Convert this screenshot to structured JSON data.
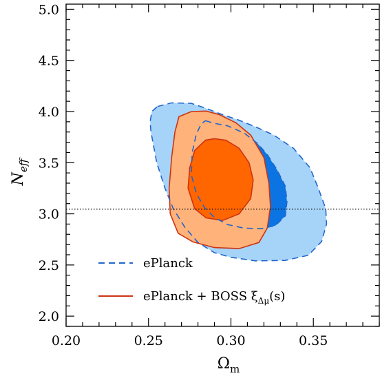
{
  "chart_data": {
    "type": "contour",
    "xlabel": "Ω",
    "xlabel_sub": "m",
    "ylabel": "N",
    "ylabel_sub": "eff",
    "xlim": [
      0.2,
      0.39
    ],
    "ylim": [
      1.9,
      5.05
    ],
    "x_ticks": [
      0.2,
      0.25,
      0.3,
      0.35
    ],
    "x_tick_labels": [
      "0.20",
      "0.25",
      "0.30",
      "0.35"
    ],
    "y_ticks": [
      2.0,
      2.5,
      3.0,
      3.5,
      4.0,
      4.5,
      5.0
    ],
    "y_tick_labels": [
      "2.0",
      "2.5",
      "3.0",
      "3.5",
      "4.0",
      "4.5",
      "5.0"
    ],
    "reference_line": {
      "y": 3.046,
      "style": "dotted"
    },
    "legend": {
      "placement": "bottom-left",
      "entries": [
        {
          "label": "ePlanck",
          "style": "dashed",
          "color": "#2266cc"
        },
        {
          "label": "ePlanck + BOSS ξ",
          "label_sub": "Δμ",
          "label_suffix": "(s)",
          "style": "solid",
          "color": "#cc3311"
        }
      ]
    },
    "series": [
      {
        "name": "ePlanck",
        "fill_68": "#0b74e2",
        "fill_95": "#a6d4f8",
        "line": "#2266cc",
        "contour_95": [
          [
            0.2555,
            4.05
          ],
          [
            0.264,
            4.085
          ],
          [
            0.276,
            4.08
          ],
          [
            0.285,
            4.03
          ],
          [
            0.294,
            3.975
          ],
          [
            0.305,
            3.915
          ],
          [
            0.315,
            3.85
          ],
          [
            0.326,
            3.77
          ],
          [
            0.338,
            3.64
          ],
          [
            0.348,
            3.45
          ],
          [
            0.353,
            3.25
          ],
          [
            0.3575,
            3.05
          ],
          [
            0.358,
            2.9
          ],
          [
            0.355,
            2.73
          ],
          [
            0.347,
            2.595
          ],
          [
            0.333,
            2.545
          ],
          [
            0.315,
            2.54
          ],
          [
            0.3,
            2.575
          ],
          [
            0.29,
            2.62
          ],
          [
            0.28,
            2.72
          ],
          [
            0.272,
            2.87
          ],
          [
            0.265,
            3.05
          ],
          [
            0.26,
            3.25
          ],
          [
            0.255,
            3.5
          ],
          [
            0.2515,
            3.8
          ],
          [
            0.251,
            3.9
          ],
          [
            0.252,
            4.0
          ]
        ],
        "contour_68": [
          [
            0.2845,
            3.91
          ],
          [
            0.29,
            3.885
          ],
          [
            0.298,
            3.86
          ],
          [
            0.308,
            3.79
          ],
          [
            0.316,
            3.69
          ],
          [
            0.322,
            3.58
          ],
          [
            0.328,
            3.43
          ],
          [
            0.333,
            3.27
          ],
          [
            0.334,
            3.12
          ],
          [
            0.333,
            2.98
          ],
          [
            0.327,
            2.885
          ],
          [
            0.3185,
            2.855
          ],
          [
            0.308,
            2.86
          ],
          [
            0.298,
            2.895
          ],
          [
            0.29,
            2.965
          ],
          [
            0.284,
            3.06
          ],
          [
            0.279,
            3.2
          ],
          [
            0.276,
            3.38
          ],
          [
            0.2765,
            3.6
          ],
          [
            0.279,
            3.78
          ],
          [
            0.282,
            3.88
          ]
        ]
      },
      {
        "name": "ePlanck + BOSS ξΔμ(s)",
        "fill_68": "#ff6600",
        "fill_95": "#ffb27a",
        "line": "#cc3311",
        "contour_95": [
          [
            0.2685,
            3.95
          ],
          [
            0.276,
            4.0
          ],
          [
            0.285,
            4.005
          ],
          [
            0.293,
            3.97
          ],
          [
            0.303,
            3.89
          ],
          [
            0.312,
            3.77
          ],
          [
            0.32,
            3.55
          ],
          [
            0.323,
            3.3
          ],
          [
            0.324,
            3.07
          ],
          [
            0.322,
            2.86
          ],
          [
            0.317,
            2.72
          ],
          [
            0.305,
            2.66
          ],
          [
            0.29,
            2.67
          ],
          [
            0.277,
            2.725
          ],
          [
            0.268,
            2.81
          ],
          [
            0.2632,
            3.0
          ],
          [
            0.2625,
            3.25
          ],
          [
            0.264,
            3.55
          ],
          [
            0.266,
            3.8
          ]
        ],
        "contour_68": [
          [
            0.2845,
            3.72
          ],
          [
            0.29,
            3.735
          ],
          [
            0.297,
            3.72
          ],
          [
            0.305,
            3.64
          ],
          [
            0.311,
            3.5
          ],
          [
            0.3135,
            3.33
          ],
          [
            0.312,
            3.15
          ],
          [
            0.305,
            3.0
          ],
          [
            0.295,
            2.935
          ],
          [
            0.285,
            2.96
          ],
          [
            0.278,
            3.05
          ],
          [
            0.274,
            3.25
          ],
          [
            0.275,
            3.45
          ],
          [
            0.278,
            3.62
          ]
        ]
      }
    ]
  }
}
